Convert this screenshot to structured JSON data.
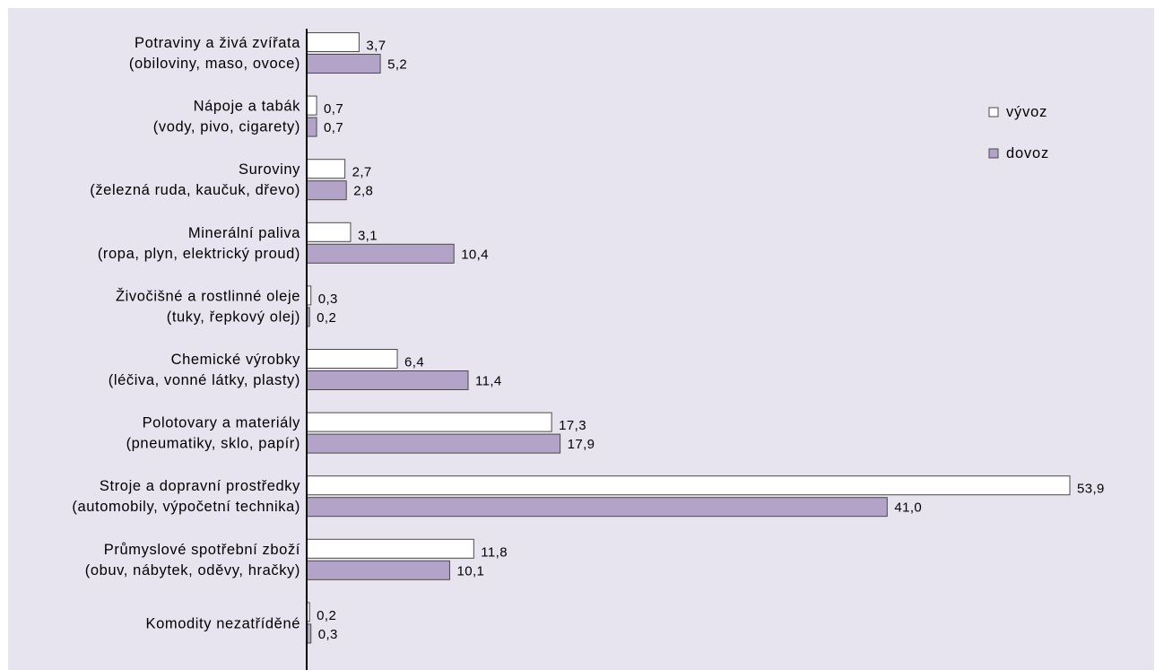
{
  "colors": {
    "background": "#e8e4ef",
    "export_bar": "#ffffff",
    "import_bar": "#b3a3c8",
    "bar_stroke": "#4a4a4a",
    "axis": "#000000"
  },
  "chart_data": {
    "type": "bar",
    "orientation": "horizontal",
    "categories": [
      {
        "line1": "Potraviny a živá zvířata",
        "line2": "(obiloviny, maso, ovoce)"
      },
      {
        "line1": "Nápoje a tabák",
        "line2": "(vody, pivo, cigarety)"
      },
      {
        "line1": "Suroviny",
        "line2": "(železná ruda, kaučuk, dřevo)"
      },
      {
        "line1": "Minerální paliva",
        "line2": "(ropa, plyn, elektrický proud)"
      },
      {
        "line1": "Živočišné a rostlinné oleje",
        "line2": "(tuky, řepkový olej)"
      },
      {
        "line1": "Chemické výrobky",
        "line2": "(léčiva, vonné látky, plasty)"
      },
      {
        "line1": "Polotovary a materiály",
        "line2": "(pneumatiky, sklo, papír)"
      },
      {
        "line1": "Stroje a dopravní prostředky",
        "line2": "(automobily, výpočetní technika)"
      },
      {
        "line1": "Průmyslové spotřební zboží",
        "line2": "(obuv, nábytek, oděvy, hračky)"
      },
      {
        "line1": "Komodity nezatříděné",
        "line2": ""
      }
    ],
    "series": [
      {
        "name": "vývoz",
        "color": "#ffffff",
        "values": [
          3.7,
          0.7,
          2.7,
          3.1,
          0.3,
          6.4,
          17.3,
          53.9,
          11.8,
          0.2
        ],
        "labels": [
          "3,7",
          "0,7",
          "2,7",
          "3,1",
          "0,3",
          "6,4",
          "17,3",
          "53,9",
          "11,8",
          "0,2"
        ]
      },
      {
        "name": "dovoz",
        "color": "#b3a3c8",
        "values": [
          5.2,
          0.7,
          2.8,
          10.4,
          0.2,
          11.4,
          17.9,
          41.0,
          10.1,
          0.3
        ],
        "labels": [
          "5,2",
          "0,7",
          "2,8",
          "10,4",
          "0,2",
          "11,4",
          "17,9",
          "41,0",
          "10,1",
          "0,3"
        ]
      }
    ],
    "xlim": [
      0,
      54
    ],
    "grid": false,
    "legend_position": "top-right"
  }
}
